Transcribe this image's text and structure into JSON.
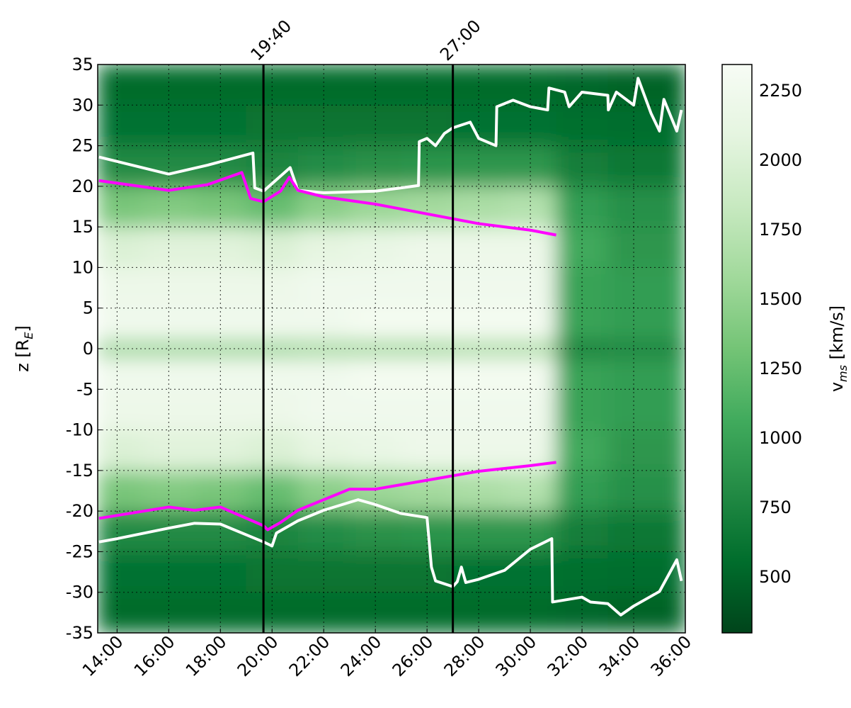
{
  "chart_data": {
    "type": "heatmap",
    "y_label": [
      "z [R",
      "E",
      "]"
    ],
    "colorbar_label": [
      "v",
      "ms",
      " [km/s]"
    ],
    "colormap": "Greens_r",
    "clim": [
      298,
      2344
    ],
    "cticks": [
      500,
      750,
      1000,
      1250,
      1500,
      1750,
      2000,
      2250
    ],
    "xlim": [
      13.25,
      36
    ],
    "xticks": [
      {
        "value": 14,
        "label": "14:00"
      },
      {
        "value": 16,
        "label": "16:00"
      },
      {
        "value": 18,
        "label": "18:00"
      },
      {
        "value": 20,
        "label": "20:00"
      },
      {
        "value": 22,
        "label": "22:00"
      },
      {
        "value": 24,
        "label": "24:00"
      },
      {
        "value": 26,
        "label": "26:00"
      },
      {
        "value": 28,
        "label": "28:00"
      },
      {
        "value": 30,
        "label": "30:00"
      },
      {
        "value": 32,
        "label": "32:00"
      },
      {
        "value": 34,
        "label": "34:00"
      },
      {
        "value": 36,
        "label": "36:00"
      }
    ],
    "ylim": [
      -35,
      35
    ],
    "yticks": [
      -35,
      -30,
      -25,
      -20,
      -15,
      -10,
      -5,
      0,
      5,
      10,
      15,
      20,
      25,
      30,
      35
    ],
    "grid": true,
    "markers": [
      {
        "value": 19.667,
        "label": "19:40",
        "color": "#000000"
      },
      {
        "value": 27,
        "label": "27:00",
        "color": "#000000"
      }
    ],
    "heatmap": {
      "x_edges": [
        13.25,
        15,
        17,
        19,
        21,
        23,
        25,
        27,
        29,
        31,
        33,
        36
      ],
      "z_edges": [
        -35,
        -30,
        -25,
        -20,
        -15,
        -10,
        -5,
        -1,
        1,
        5,
        10,
        15,
        20,
        25,
        30,
        35
      ],
      "values": [
        [
          550,
          550,
          550,
          550,
          550,
          550,
          550,
          550,
          550,
          520,
          500
        ],
        [
          600,
          600,
          600,
          620,
          620,
          620,
          620,
          600,
          600,
          580,
          560
        ],
        [
          800,
          800,
          800,
          760,
          820,
          860,
          880,
          900,
          900,
          700,
          650
        ],
        [
          1350,
          1400,
          1350,
          1250,
          1450,
          1550,
          1600,
          1650,
          1700,
          950,
          850
        ],
        [
          2000,
          2050,
          2050,
          2000,
          2100,
          2150,
          2200,
          2200,
          2200,
          1050,
          900
        ],
        [
          2200,
          2200,
          2200,
          2200,
          2250,
          2250,
          2250,
          2250,
          2250,
          1000,
          950
        ],
        [
          2250,
          2250,
          2250,
          2250,
          2250,
          2300,
          2300,
          2300,
          2300,
          1000,
          950
        ],
        [
          1500,
          1500,
          1500,
          1500,
          1550,
          1550,
          1550,
          1600,
          1600,
          700,
          750
        ],
        [
          2250,
          2250,
          2250,
          2250,
          2250,
          2300,
          2300,
          2300,
          2300,
          1000,
          950
        ],
        [
          2200,
          2200,
          2200,
          2200,
          2250,
          2250,
          2250,
          2250,
          2250,
          1000,
          950
        ],
        [
          2000,
          2050,
          2050,
          2000,
          2100,
          2150,
          2200,
          2200,
          2200,
          1050,
          900
        ],
        [
          1350,
          1400,
          1350,
          1250,
          1450,
          1550,
          1600,
          1650,
          1700,
          950,
          850
        ],
        [
          800,
          800,
          800,
          760,
          820,
          860,
          880,
          900,
          900,
          700,
          650
        ],
        [
          600,
          600,
          600,
          620,
          620,
          620,
          620,
          600,
          600,
          580,
          560
        ],
        [
          550,
          550,
          550,
          550,
          550,
          550,
          550,
          550,
          550,
          520,
          500
        ]
      ]
    },
    "series": [
      {
        "color": "#ffffff",
        "x": [
          13.3,
          16,
          17.5,
          19.26,
          19.33,
          19.67,
          20.7,
          21,
          22,
          24,
          25,
          25.67,
          25.7,
          26,
          26.33,
          26.67,
          27,
          27.67,
          28,
          28.67,
          28.7,
          29.33,
          30,
          30.67,
          30.72,
          31.33,
          31.5,
          32,
          33,
          33.02,
          33.33,
          34,
          34.17,
          34.67,
          35,
          35.17,
          35.67,
          35.85
        ],
        "values": [
          23.6,
          21.5,
          22.6,
          24.1,
          19.8,
          19.4,
          22.3,
          19.5,
          19.2,
          19.4,
          19.8,
          20.1,
          25.5,
          25.9,
          25.0,
          26.5,
          27.2,
          27.9,
          25.9,
          25.0,
          29.8,
          30.6,
          29.8,
          29.4,
          32.1,
          31.6,
          29.8,
          31.6,
          31.2,
          29.4,
          31.6,
          30.0,
          33.3,
          29.0,
          26.8,
          30.7,
          26.8,
          29.4
        ]
      },
      {
        "color": "#ff00ff",
        "x": [
          13.3,
          16,
          17.5,
          18.83,
          19.17,
          19.67,
          20.33,
          20.67,
          21,
          22,
          24,
          26,
          28,
          30,
          31
        ],
        "values": [
          20.7,
          19.5,
          20.2,
          21.7,
          18.5,
          18.1,
          19.4,
          21.1,
          19.5,
          18.7,
          17.8,
          16.6,
          15.4,
          14.6,
          14.0
        ]
      },
      {
        "color": "#ff00ff",
        "x": [
          13.3,
          16,
          17,
          18,
          19.67,
          19.83,
          20.33,
          21,
          22,
          23,
          24,
          26,
          28,
          30,
          31
        ],
        "values": [
          -20.9,
          -19.5,
          -19.9,
          -19.5,
          -21.8,
          -22.3,
          -21.4,
          -19.9,
          -18.6,
          -17.3,
          -17.3,
          -16.2,
          -15.1,
          -14.4,
          -14.0
        ]
      },
      {
        "color": "#ffffff",
        "x": [
          13.3,
          14,
          16,
          17,
          18,
          19.67,
          20,
          20.17,
          21,
          22,
          23.33,
          24,
          25,
          26,
          26.17,
          26.33,
          27,
          27.17,
          27.33,
          27.5,
          28,
          29,
          30,
          30.83,
          30.86,
          32,
          32.33,
          33,
          33.5,
          34,
          35,
          35.67,
          35.85
        ],
        "values": [
          -23.8,
          -23.4,
          -22.1,
          -21.5,
          -21.6,
          -23.8,
          -24.3,
          -22.7,
          -21.2,
          -19.9,
          -18.6,
          -19.2,
          -20.3,
          -20.8,
          -26.9,
          -28.6,
          -29.3,
          -28.7,
          -26.9,
          -28.8,
          -28.4,
          -27.3,
          -24.7,
          -23.4,
          -31.2,
          -30.6,
          -31.2,
          -31.4,
          -32.8,
          -31.7,
          -29.9,
          -26.0,
          -28.6
        ]
      }
    ]
  }
}
